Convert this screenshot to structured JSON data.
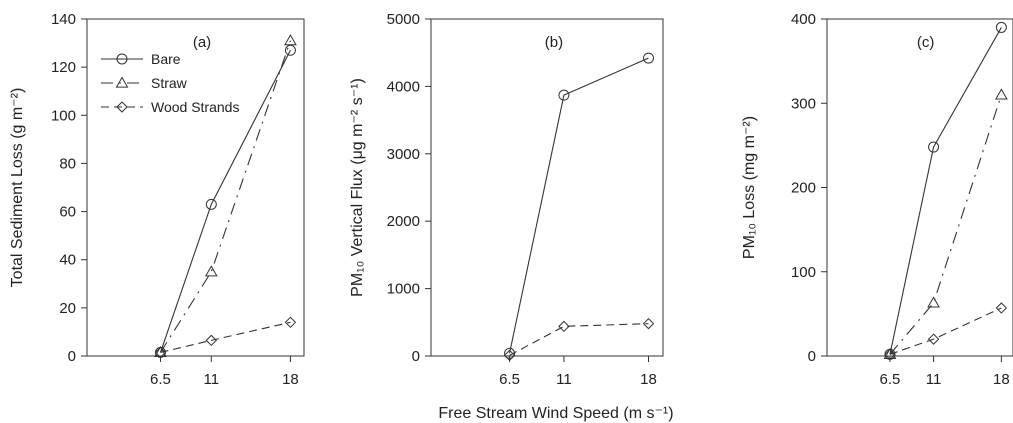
{
  "figure": {
    "shared_xlabel": "Free Stream Wind Speed (m s⁻¹)"
  },
  "chart_data": [
    {
      "type": "line",
      "panel_tag": "(a)",
      "ylabel": "Total Sediment Loss (g m⁻²)",
      "x": [
        6.5,
        11,
        18
      ],
      "x_tick_labels": [
        "6.5",
        "11",
        "18"
      ],
      "xlim": [
        0,
        19.2
      ],
      "ylim": [
        0,
        140
      ],
      "y_ticks": [
        0,
        20,
        40,
        60,
        80,
        100,
        120,
        140
      ],
      "legend": {
        "placement": "top-left"
      },
      "series": [
        {
          "name": "Bare",
          "marker": "circle",
          "dash": "solid",
          "values": [
            1.5,
            63,
            127
          ]
        },
        {
          "name": "Straw",
          "marker": "triangle",
          "dash": "dashdot",
          "values": [
            1.5,
            35,
            131
          ]
        },
        {
          "name": "Wood Strands",
          "marker": "diamond",
          "dash": "dashed",
          "values": [
            1.5,
            6.5,
            14
          ]
        }
      ]
    },
    {
      "type": "line",
      "panel_tag": "(b)",
      "ylabel": "PM₁₀ Vertical Flux (μg m⁻² s⁻¹)",
      "x": [
        6.5,
        11,
        18
      ],
      "x_tick_labels": [
        "6.5",
        "11",
        "18"
      ],
      "xlim": [
        0,
        19.2
      ],
      "ylim": [
        0,
        5000
      ],
      "y_ticks": [
        0,
        1000,
        2000,
        3000,
        4000,
        5000
      ],
      "series": [
        {
          "name": "Bare",
          "marker": "circle",
          "dash": "solid",
          "values": [
            40,
            3870,
            4420
          ]
        },
        {
          "name": "Wood Strands",
          "marker": "diamond",
          "dash": "dashed",
          "values": [
            10,
            440,
            480
          ]
        }
      ]
    },
    {
      "type": "line",
      "panel_tag": "(c)",
      "ylabel": "PM₁₀ Loss (mg m⁻²)",
      "x": [
        6.5,
        11,
        18
      ],
      "x_tick_labels": [
        "6.5",
        "11",
        "18"
      ],
      "xlim": [
        0,
        19.2
      ],
      "ylim": [
        0,
        400
      ],
      "y_ticks": [
        0,
        100,
        200,
        300,
        400
      ],
      "series": [
        {
          "name": "Bare",
          "marker": "circle",
          "dash": "solid",
          "values": [
            2,
            248,
            390
          ]
        },
        {
          "name": "Straw",
          "marker": "triangle",
          "dash": "dashdot",
          "values": [
            2,
            63,
            310
          ]
        },
        {
          "name": "Wood Strands",
          "marker": "diamond",
          "dash": "dashed",
          "values": [
            2,
            20,
            57
          ]
        }
      ]
    }
  ]
}
